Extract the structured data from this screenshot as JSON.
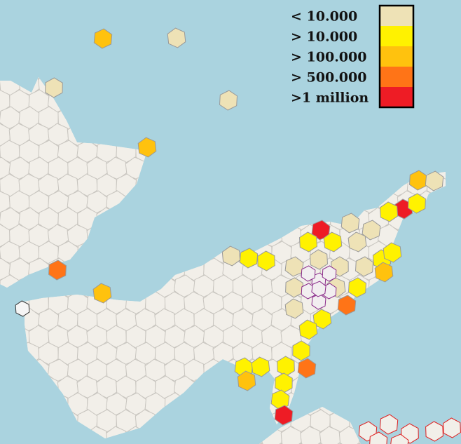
{
  "legend": {
    "items": [
      {
        "label": "< 10.000",
        "color": "#eee2b6"
      },
      {
        "label": "> 10.000",
        "color": "#fff200"
      },
      {
        "label": "> 100.000",
        "color": "#ffc20e"
      },
      {
        "label": "> 500.000",
        "color": "#ff7417"
      },
      {
        "label": ">1 million",
        "color": "#ee1c25"
      }
    ]
  }
}
